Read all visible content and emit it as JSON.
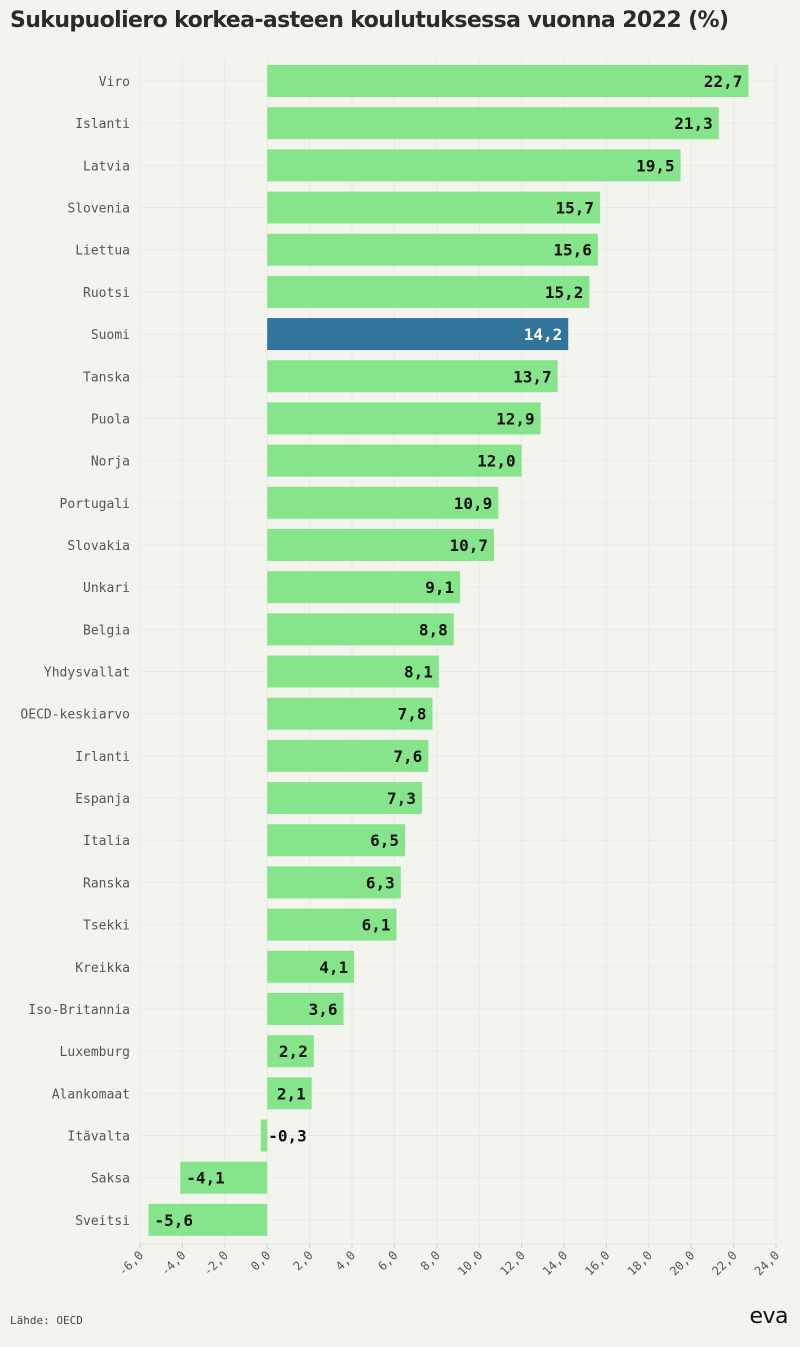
{
  "chart_data": {
    "type": "bar",
    "orientation": "horizontal",
    "title": "Sukupuoliero korkea-asteen koulutuksessa vuonna 2022 (%)",
    "xlabel": "",
    "ylabel": "",
    "xlim": [
      -6,
      24
    ],
    "xticks": [
      "-6,0",
      "-4,0",
      "-2,0",
      "0,0",
      "2,0",
      "4,0",
      "6,0",
      "8,0",
      "10,0",
      "12,0",
      "14,0",
      "16,0",
      "18,0",
      "20,0",
      "22,0",
      "24,0"
    ],
    "grid": true,
    "categories": [
      "Viro",
      "Islanti",
      "Latvia",
      "Slovenia",
      "Liettua",
      "Ruotsi",
      "Suomi",
      "Tanska",
      "Puola",
      "Norja",
      "Portugali",
      "Slovakia",
      "Unkari",
      "Belgia",
      "Yhdysvallat",
      "OECD-keskiarvo",
      "Irlanti",
      "Espanja",
      "Italia",
      "Ranska",
      "Tsekki",
      "Kreikka",
      "Iso-Britannia",
      "Luxemburg",
      "Alankomaat",
      "Itävalta",
      "Saksa",
      "Sveitsi"
    ],
    "values": [
      22.7,
      21.3,
      19.5,
      15.7,
      15.6,
      15.2,
      14.2,
      13.7,
      12.9,
      12.0,
      10.9,
      10.7,
      9.1,
      8.8,
      8.1,
      7.8,
      7.6,
      7.3,
      6.5,
      6.3,
      6.1,
      4.1,
      3.6,
      2.2,
      2.1,
      -0.3,
      -4.1,
      -5.6
    ],
    "labels": [
      "22,7",
      "21,3",
      "19,5",
      "15,7",
      "15,6",
      "15,2",
      "14,2",
      "13,7",
      "12,9",
      "12,0",
      "10,9",
      "10,7",
      "9,1",
      "8,8",
      "8,1",
      "7,8",
      "7,6",
      "7,3",
      "6,5",
      "6,3",
      "6,1",
      "4,1",
      "3,6",
      "2,2",
      "2,1",
      "-0,3",
      "-4,1",
      "-5,6"
    ],
    "highlight": "Suomi",
    "colors": {
      "default": "#86e58b",
      "highlight": "#33749c",
      "label_default": "#111111",
      "label_highlight": "#ffffff"
    }
  },
  "footer": {
    "source": "Lähde: OECD",
    "logo": "eva"
  }
}
